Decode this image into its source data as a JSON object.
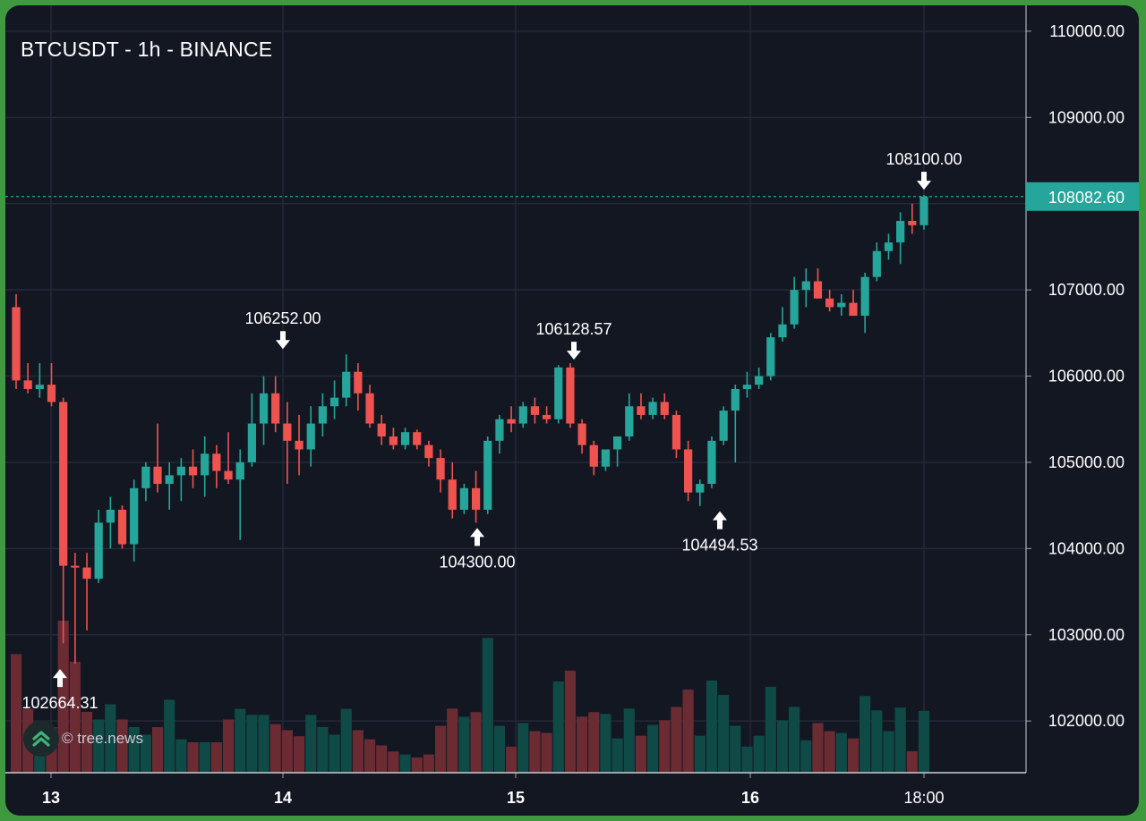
{
  "title": "BTCUSDT - 1h - BINANCE",
  "watermark": {
    "text": "© tree.news",
    "logo_icon": "double-chevron-up-icon"
  },
  "colors": {
    "background": "#131722",
    "grid": "#242936",
    "up": "#26a69a",
    "down": "#ef5350",
    "up_volume": "#0f4a46",
    "down_volume": "#6b2b33",
    "axis_text": "#ffffff",
    "price_label_bg": "#26a69a"
  },
  "chart_data": {
    "type": "candlestick",
    "symbol": "BTCUSDT",
    "interval": "1h",
    "exchange": "BINANCE",
    "ylim": [
      101400,
      110300
    ],
    "y_ticks": [
      "102000.00",
      "103000.00",
      "104000.00",
      "105000.00",
      "106000.00",
      "107000.00",
      "108000.00",
      "109000.00",
      "110000.00"
    ],
    "x_ticks": [
      {
        "label": "13",
        "bold": true,
        "index": 2
      },
      {
        "label": "14",
        "bold": true,
        "index": 14
      },
      {
        "label": "15",
        "bold": true,
        "index": 26
      },
      {
        "label": "16",
        "bold": true,
        "index": 38
      },
      {
        "label": "18:00",
        "bold": false,
        "index": 47
      }
    ],
    "last_price": "108082.60",
    "last_price_value": 108082.6,
    "annotations": [
      {
        "label": "102664.31",
        "index": 2,
        "price": 102664.31,
        "direction": "up"
      },
      {
        "label": "106252.00",
        "index": 14,
        "price": 106252.0,
        "direction": "down"
      },
      {
        "label": "104300.00",
        "index": 24,
        "price": 104300.0,
        "direction": "up"
      },
      {
        "label": "106128.57",
        "index": 29,
        "price": 106128.57,
        "direction": "down"
      },
      {
        "label": "104494.53",
        "index": 37,
        "price": 104494.53,
        "direction": "up"
      },
      {
        "label": "108100.00",
        "index": 47,
        "price": 108100.0,
        "direction": "down"
      }
    ],
    "candles": [
      [
        106800,
        106950,
        105850,
        105950
      ],
      [
        105950,
        106150,
        105800,
        105850
      ],
      [
        105850,
        106150,
        105750,
        105900
      ],
      [
        105900,
        106150,
        105650,
        105700
      ],
      [
        105700,
        105750,
        102900,
        103800
      ],
      [
        103800,
        103950,
        102664,
        103780
      ],
      [
        103780,
        103950,
        103050,
        103650
      ],
      [
        103650,
        104450,
        103600,
        104300
      ],
      [
        104300,
        104600,
        104000,
        104450
      ],
      [
        104450,
        104500,
        104000,
        104050
      ],
      [
        104050,
        104800,
        103850,
        104700
      ],
      [
        104700,
        105000,
        104550,
        104950
      ],
      [
        104950,
        105450,
        104650,
        104750
      ],
      [
        104750,
        105000,
        104450,
        104850
      ],
      [
        104850,
        105050,
        104550,
        104950
      ],
      [
        104950,
        105150,
        104700,
        104850
      ],
      [
        104850,
        105300,
        104600,
        105100
      ],
      [
        105100,
        105200,
        104700,
        104900
      ],
      [
        104900,
        105350,
        104750,
        104800
      ],
      [
        104800,
        105150,
        104100,
        105000
      ],
      [
        105000,
        105800,
        104950,
        105450
      ],
      [
        105450,
        106000,
        105200,
        105800
      ],
      [
        105800,
        106000,
        105350,
        105450
      ],
      [
        105450,
        105700,
        104750,
        105250
      ],
      [
        105250,
        105550,
        104850,
        105150
      ],
      [
        105150,
        105650,
        104950,
        105450
      ],
      [
        105450,
        105800,
        105300,
        105650
      ],
      [
        105650,
        105950,
        105500,
        105750
      ],
      [
        105750,
        106252,
        105650,
        106050
      ],
      [
        106050,
        106150,
        105600,
        105800
      ],
      [
        105800,
        105900,
        105400,
        105450
      ],
      [
        105450,
        105550,
        105200,
        105300
      ],
      [
        105300,
        105400,
        105150,
        105200
      ],
      [
        105200,
        105400,
        105150,
        105350
      ],
      [
        105350,
        105380,
        105150,
        105200
      ],
      [
        105200,
        105250,
        104950,
        105050
      ]
    ],
    "volumes": [
      0.78,
      0.42,
      0.3,
      0.3,
      1.0,
      0.73,
      0.4,
      0.35,
      0.45,
      0.35,
      0.3,
      0.25,
      0.3,
      0.48,
      0.22,
      0.2,
      0.2,
      0.2,
      0.35,
      0.42,
      0.38,
      0.38,
      0.32,
      0.28,
      0.24,
      0.38,
      0.3,
      0.25,
      0.42,
      0.28,
      0.22,
      0.18,
      0.14,
      0.12,
      0.1,
      0.12
    ]
  }
}
